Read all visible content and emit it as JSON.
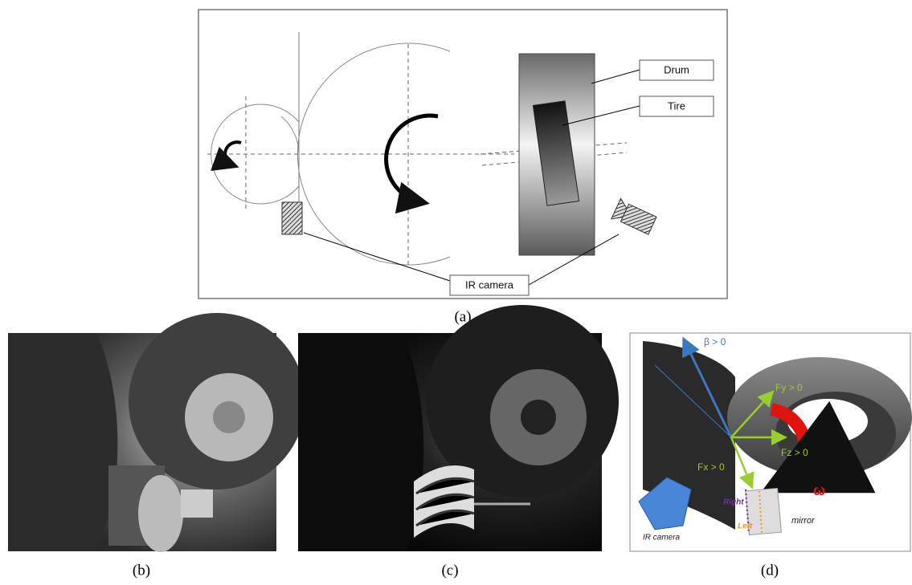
{
  "panel_a": {
    "caption": "(a)",
    "drum": "Drum",
    "tire": "Tire",
    "ir_camera": "IR camera"
  },
  "panel_b": {
    "caption": "(b)"
  },
  "panel_c": {
    "caption": "(c)"
  },
  "panel_d": {
    "caption": "(d)",
    "beta": "β > 0",
    "fy": "Fy > 0",
    "fz": "Fz > 0",
    "fx": "Fx > 0",
    "omega": "ω",
    "right": "Right",
    "left": "Left",
    "ir_camera": "IR camera",
    "mirror": "mirror"
  }
}
